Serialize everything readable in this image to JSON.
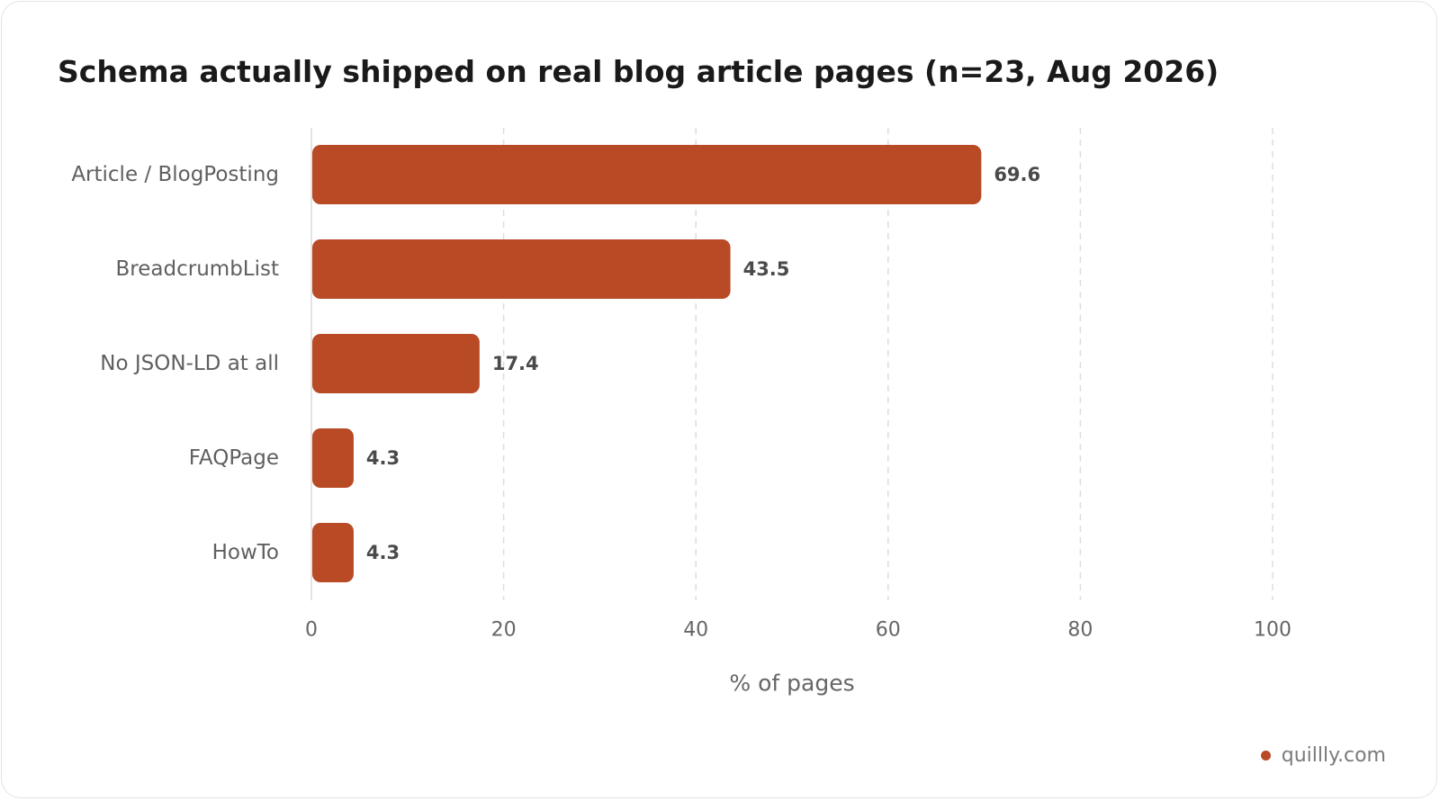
{
  "header": {
    "title": "Schema actually shipped on real blog article pages (n=23, Aug 2026)"
  },
  "footer": {
    "brand": "quillly.com"
  },
  "colors": {
    "bar": "#b84a26",
    "grid": "#dddddd",
    "axis": "#d8d8d8",
    "category_label": "#5f5f5f",
    "value_label": "#4a4a4a",
    "tick_label": "#666666"
  },
  "chart_data": {
    "type": "bar",
    "orientation": "horizontal",
    "title": "Schema actually shipped on real blog article pages (n=23, Aug 2026)",
    "categories": [
      "Article / BlogPosting",
      "BreadcrumbList",
      "No JSON-LD at all",
      "FAQPage",
      "HowTo"
    ],
    "values": [
      69.6,
      43.5,
      17.4,
      4.3,
      4.3
    ],
    "value_labels": [
      "69.6",
      "43.5",
      "17.4",
      "4.3",
      "4.3"
    ],
    "xlabel": "% of pages",
    "ylabel": "",
    "xlim": [
      0,
      100
    ],
    "xticks": [
      0,
      20,
      40,
      60,
      80,
      100
    ],
    "xtick_labels": [
      "0",
      "20",
      "40",
      "60",
      "80",
      "100"
    ],
    "grid": "vertical-dashed",
    "legend": "none"
  }
}
